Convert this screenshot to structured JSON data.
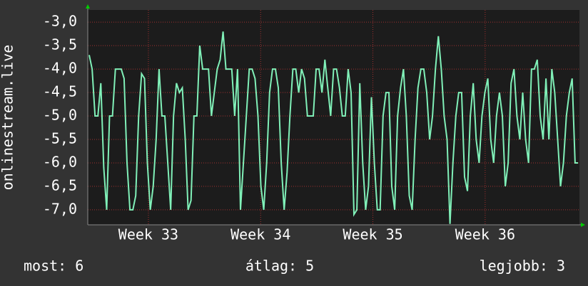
{
  "chart_data": {
    "type": "line",
    "ylabel": "onlinestream.live",
    "ylim": [
      -7.32,
      -2.74
    ],
    "yticks": [
      {
        "value": -3,
        "label": "-3,0"
      },
      {
        "value": -3.5,
        "label": "-3,5"
      },
      {
        "value": -4,
        "label": "-4,0"
      },
      {
        "value": -4.5,
        "label": "-4,5"
      },
      {
        "value": -5,
        "label": "-5,0"
      },
      {
        "value": -5.5,
        "label": "-5,5"
      },
      {
        "value": -6,
        "label": "-6,0"
      },
      {
        "value": -6.5,
        "label": "-6,5"
      },
      {
        "value": -7,
        "label": "-7,0"
      }
    ],
    "xlim": [
      32.46,
      36.84
    ],
    "xticks": [
      {
        "value": 33,
        "label": "Week 33"
      },
      {
        "value": 34,
        "label": "Week 34"
      },
      {
        "value": 35,
        "label": "Week 35"
      },
      {
        "value": 36,
        "label": "Week 36"
      }
    ],
    "grid": true,
    "color": "#80f0b8",
    "values": [
      -3.7,
      -4,
      -5,
      -5,
      -4.3,
      -6.1,
      -7,
      -5,
      -5,
      -4,
      -4,
      -4,
      -4.2,
      -6,
      -7,
      -7,
      -6.7,
      -5,
      -4.1,
      -4.2,
      -6,
      -7,
      -6.5,
      -5.5,
      -4,
      -5,
      -5,
      -6,
      -7,
      -5,
      -4.3,
      -4.5,
      -4.4,
      -5.5,
      -7,
      -6.8,
      -5,
      -5,
      -3.5,
      -4,
      -4,
      -4,
      -5,
      -4.5,
      -4,
      -3.8,
      -3.2,
      -4,
      -4,
      -4,
      -5,
      -4,
      -7,
      -6,
      -5,
      -4,
      -4,
      -4.2,
      -5,
      -6.5,
      -7,
      -6,
      -4.5,
      -4,
      -4,
      -4.4,
      -6,
      -7,
      -6.2,
      -5,
      -4,
      -4,
      -4.5,
      -4,
      -4.2,
      -5,
      -5,
      -5,
      -4,
      -4,
      -4.5,
      -3.8,
      -4.4,
      -5,
      -4,
      -4,
      -4.4,
      -5,
      -5,
      -4,
      -4.5,
      -7.1,
      -7,
      -4.3,
      -6,
      -7,
      -6.5,
      -4.6,
      -6,
      -7,
      -7,
      -5,
      -4.5,
      -4.5,
      -6.5,
      -7,
      -5,
      -4.4,
      -4,
      -5,
      -6.7,
      -7,
      -5.5,
      -4.4,
      -4,
      -4,
      -4.5,
      -5.5,
      -5,
      -4,
      -3.3,
      -4,
      -5,
      -5.5,
      -7.3,
      -6,
      -5,
      -4.5,
      -4.5,
      -6.3,
      -6.6,
      -5,
      -4.3,
      -5.5,
      -6,
      -5,
      -4.5,
      -4.2,
      -5.5,
      -6,
      -5,
      -4.5,
      -5,
      -6.5,
      -6,
      -4.3,
      -4,
      -5,
      -5.5,
      -4.5,
      -5.5,
      -6,
      -4,
      -4,
      -3.8,
      -5,
      -5.5,
      -4.2,
      -5.5,
      -4,
      -4.5,
      -5.5,
      -6.5,
      -6,
      -5,
      -4.5,
      -4.2,
      -6,
      -6
    ],
    "footer": [
      "most: 6",
      "átlag: 5",
      "legjobb: 3"
    ]
  }
}
